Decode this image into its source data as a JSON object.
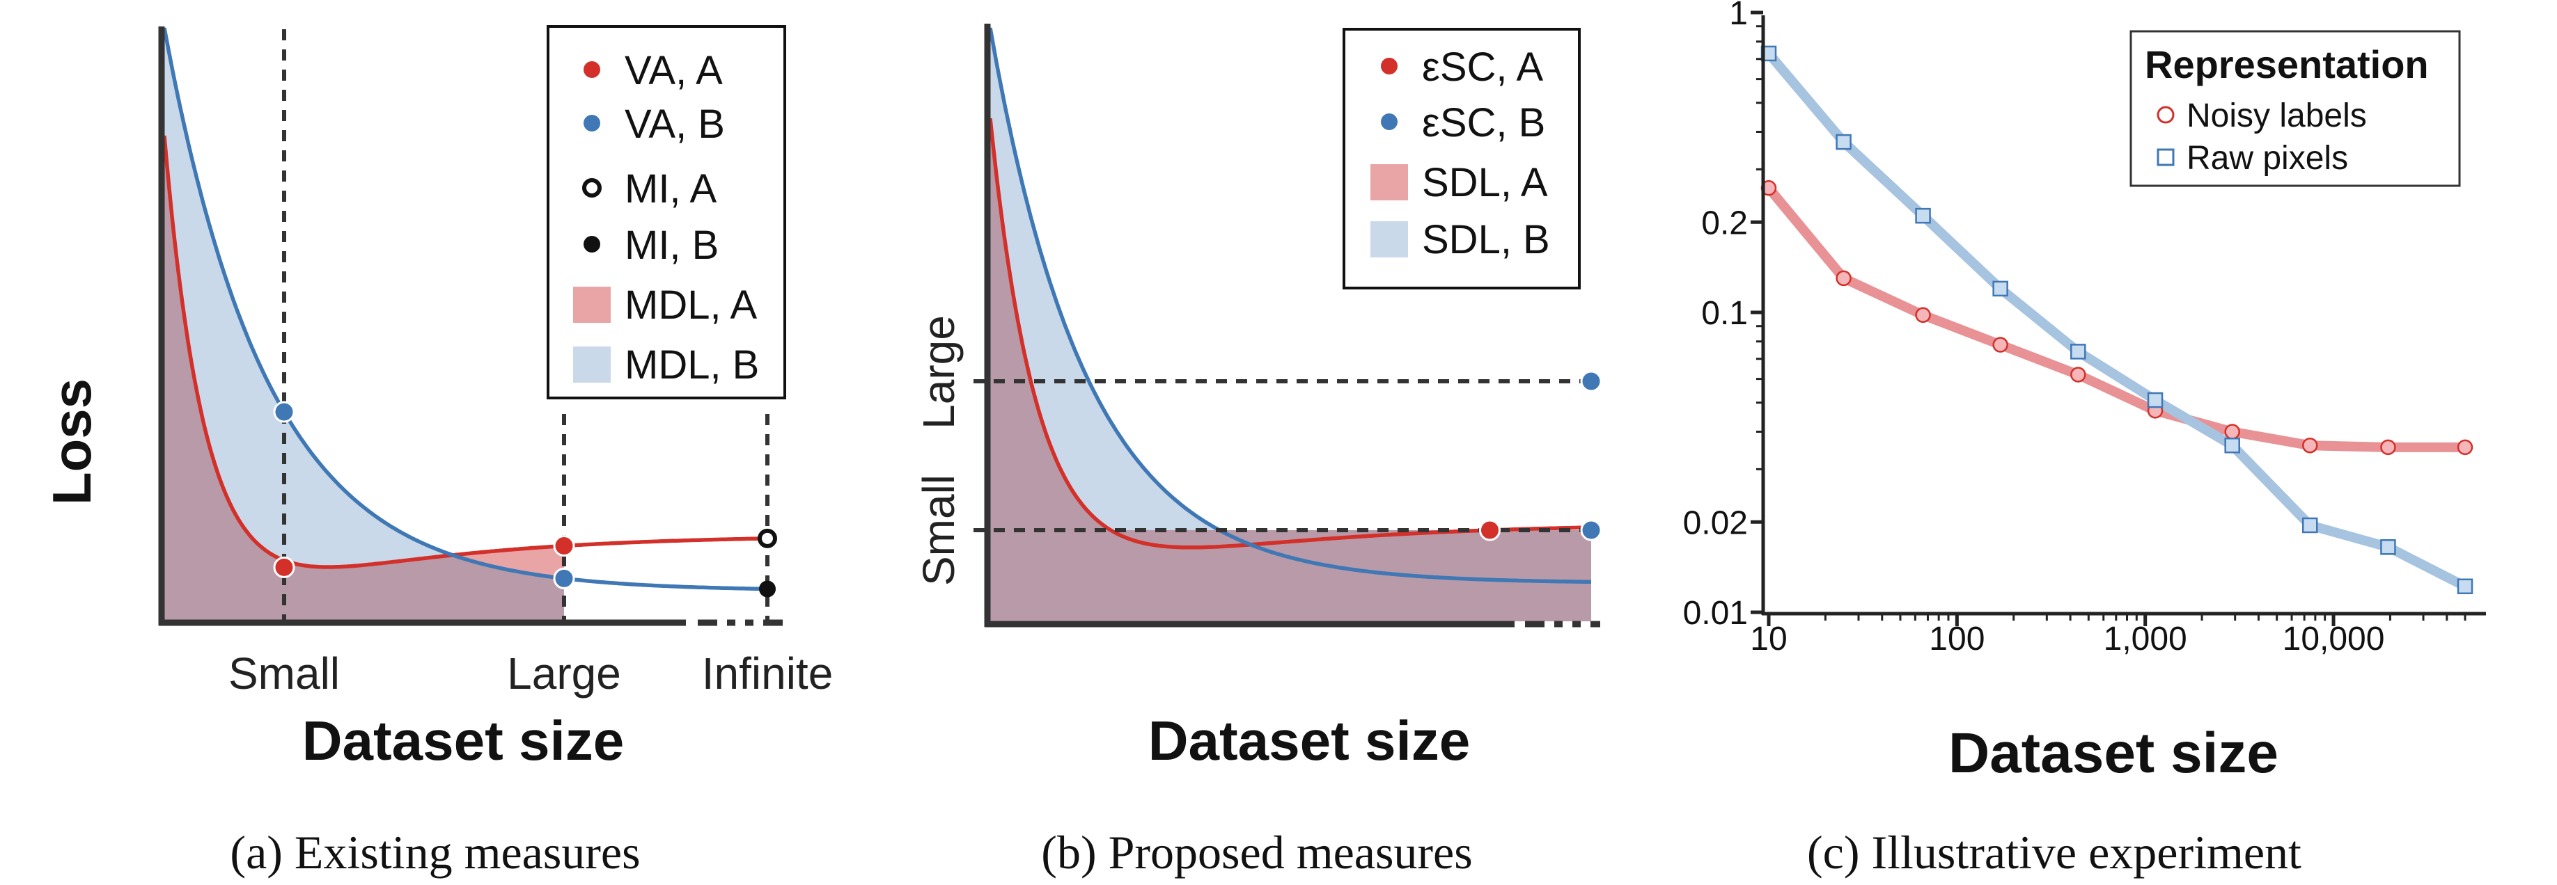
{
  "colors": {
    "red": "#d3302a",
    "blue": "#3f78b5",
    "red_fill": "#e9a4a6",
    "blue_fill": "#c9d9ea",
    "overlap_fill": "#b99aa8",
    "axis": "#333333",
    "c_red": "#e89295",
    "c_blue": "#a6c3e0"
  },
  "chart_data": [
    {
      "type": "line",
      "panel": "a",
      "caption": "(a) Existing measures",
      "ylabel": "Loss",
      "xlabel": "Dataset size",
      "x_ticks": [
        "Small",
        "Large",
        "Infinite"
      ],
      "legend": {
        "placement": "top-right",
        "entries": [
          {
            "label": "VA, A",
            "marker": "red-dot"
          },
          {
            "label": "VA, B",
            "marker": "blue-dot"
          },
          {
            "label": "MI, A",
            "marker": "open-circle"
          },
          {
            "label": "MI, B",
            "marker": "black-dot"
          },
          {
            "label": "MDL, A",
            "marker": "red-fill"
          },
          {
            "label": "MDL, B",
            "marker": "blue-fill"
          }
        ]
      }
    },
    {
      "type": "line",
      "panel": "b",
      "caption": "(b) Proposed measures",
      "ylabel": "",
      "xlabel": "Dataset size",
      "y_ticks": [
        "Small",
        "Large"
      ],
      "legend": {
        "placement": "top-right",
        "entries": [
          {
            "label": "εSC, A",
            "marker": "red-dot"
          },
          {
            "label": "εSC, B",
            "marker": "blue-dot"
          },
          {
            "label": "SDL, A",
            "marker": "red-fill"
          },
          {
            "label": "SDL, B",
            "marker": "blue-fill"
          }
        ]
      }
    },
    {
      "type": "line",
      "panel": "c",
      "caption": "(c) Illustrative experiment",
      "xlabel": "Dataset size",
      "x_scale": "log",
      "y_scale": "log",
      "xlim": [
        10,
        50000
      ],
      "ylim": [
        0.01,
        1
      ],
      "x_ticks": [
        {
          "value": 10,
          "label": "10"
        },
        {
          "value": 100,
          "label": "100"
        },
        {
          "value": 1000,
          "label": "1,000"
        },
        {
          "value": 10000,
          "label": "10,000"
        }
      ],
      "y_ticks": [
        {
          "value": 1,
          "label": "1"
        },
        {
          "value": 0.2,
          "label": "0.2"
        },
        {
          "value": 0.1,
          "label": "0.1"
        },
        {
          "value": 0.02,
          "label": "0.02"
        },
        {
          "value": 0.01,
          "label": "0.01"
        }
      ],
      "legend_title": "Representation",
      "series": [
        {
          "name": "Noisy labels",
          "marker": "circle",
          "x": [
            10,
            25,
            66,
            170,
            440,
            1130,
            2900,
            7500,
            19500,
            50000
          ],
          "y": [
            0.26,
            0.13,
            0.098,
            0.078,
            0.062,
            0.047,
            0.04,
            0.036,
            0.0355,
            0.0355
          ]
        },
        {
          "name": "Raw pixels",
          "marker": "square",
          "x": [
            10,
            25,
            66,
            170,
            440,
            1130,
            2900,
            7500,
            19500,
            50000
          ],
          "y": [
            0.73,
            0.37,
            0.21,
            0.12,
            0.074,
            0.051,
            0.036,
            0.0195,
            0.0165,
            0.0122
          ]
        }
      ]
    }
  ]
}
